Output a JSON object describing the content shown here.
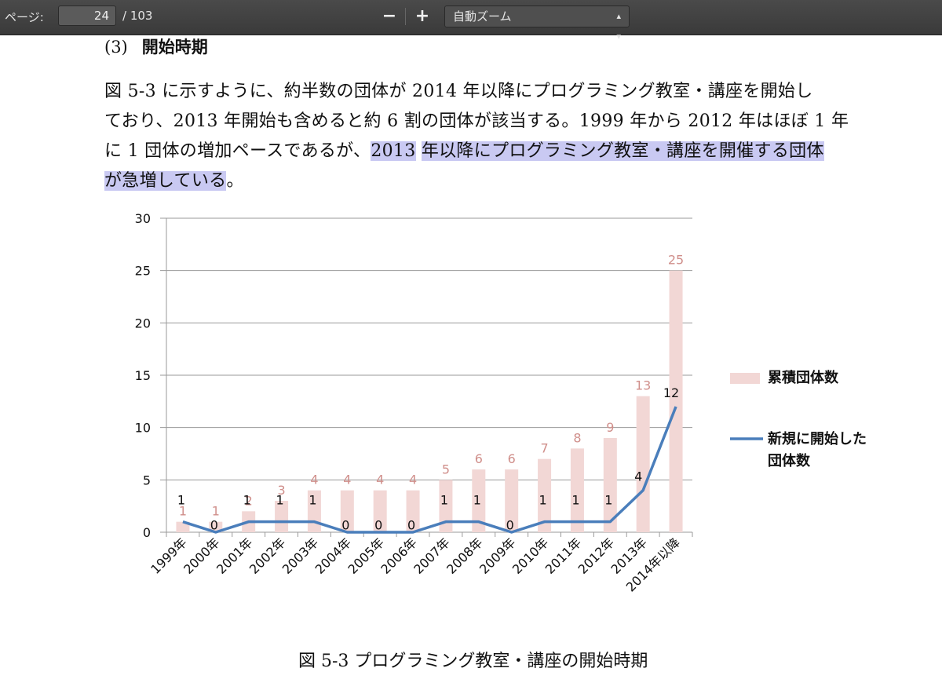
{
  "toolbar": {
    "page_label": "ページ:",
    "page_value": "24",
    "page_total": "/ 103",
    "zoom_out": "−",
    "zoom_in": "+",
    "zoom_select": "自動ズーム",
    "zoom_select_arrows": "⌃⌄"
  },
  "doc": {
    "heading_num": "(3)",
    "heading_title": "開始時期",
    "para_line1": "図 5-3 に示すように、約半数の団体が 2014 年以降にプログラミング教室・講座を開始し",
    "para_line2": "ており、2013 年開始も含めると約 6 割の団体が該当する。1999 年から 2012 年はほぼ 1 年",
    "para_line3_a": "に 1 団体の増加ペースであるが、",
    "para_line3_b": "2013",
    "para_line3_c": " ",
    "para_line3_d": "年以降にプログラミング教室・講座を開催する団体",
    "para_line4_a": "が急増している",
    "para_line4_b": "。",
    "caption": "図 5-3 プログラミング教室・講座の開始時期"
  },
  "chart_data": {
    "type": "bar",
    "categories": [
      "1999年",
      "2000年",
      "2001年",
      "2002年",
      "2003年",
      "2004年",
      "2005年",
      "2006年",
      "2007年",
      "2008年",
      "2009年",
      "2010年",
      "2011年",
      "2012年",
      "2013年",
      "2014年以降"
    ],
    "series": [
      {
        "name": "累積団体数",
        "type": "bar",
        "values": [
          1,
          1,
          2,
          3,
          4,
          4,
          4,
          4,
          5,
          6,
          6,
          7,
          8,
          9,
          13,
          25
        ],
        "color": "#f2d7d5",
        "label_color": "#d08f8b"
      },
      {
        "name": "新規に開始した団体数",
        "type": "line",
        "values": [
          1,
          0,
          1,
          1,
          1,
          0,
          0,
          0,
          1,
          1,
          0,
          1,
          1,
          1,
          4,
          12
        ],
        "color": "#4a7ebb",
        "label_color": "#111111"
      }
    ],
    "ylim": [
      0,
      30
    ],
    "yticks": [
      "0",
      "5",
      "10",
      "15",
      "20",
      "25",
      "30"
    ],
    "grid": true,
    "legend": "right",
    "legend_labels": [
      "累積団体数",
      "新規に開始した",
      "団体数"
    ]
  }
}
